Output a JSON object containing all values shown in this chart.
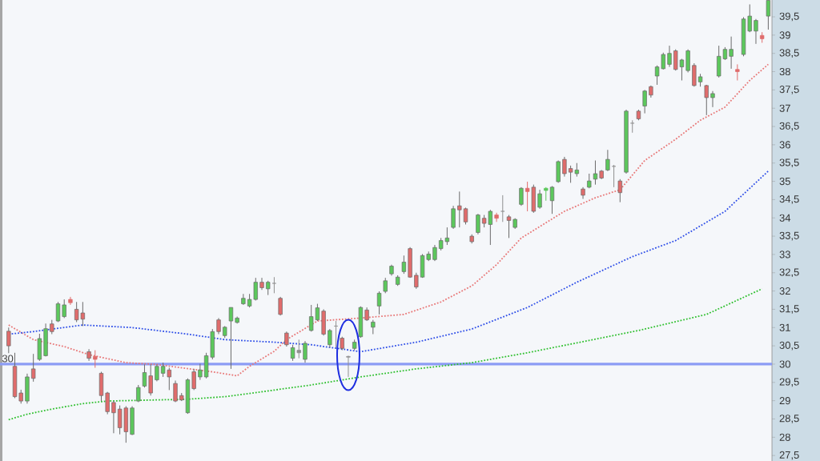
{
  "chart_data": {
    "type": "candlestick",
    "categories": [
      null,
      null,
      null,
      null,
      null,
      null,
      null,
      null,
      null,
      null,
      null,
      null,
      null,
      null,
      null,
      null,
      null,
      null,
      null,
      null,
      null,
      null,
      null,
      null,
      null,
      null,
      null,
      null,
      null,
      null,
      null,
      null,
      null,
      null,
      null,
      null,
      null,
      null,
      null,
      null,
      null,
      null,
      null,
      null,
      null,
      null,
      null,
      null,
      null,
      null,
      null,
      null,
      null,
      null,
      null,
      null,
      null,
      null,
      null,
      null,
      null,
      null,
      null,
      null,
      null,
      null,
      null,
      null,
      null,
      null,
      null,
      null,
      null,
      null,
      null,
      null,
      null,
      null,
      null,
      null,
      null,
      null,
      null,
      null,
      null,
      null,
      null,
      null,
      null,
      null,
      null,
      null,
      null,
      null,
      null,
      null,
      null,
      null,
      null,
      null,
      null,
      null,
      null,
      null,
      null,
      null,
      null,
      null,
      null,
      null,
      null,
      null,
      null,
      null,
      null,
      null,
      null,
      null,
      null,
      null,
      null,
      null,
      null,
      null
    ],
    "series": [
      {
        "type": "line",
        "color": "#e87878",
        "values": [
          31.07,
          null,
          null,
          null,
          30.67,
          null,
          null,
          null,
          null,
          30.48,
          null,
          null,
          null,
          30.26,
          null,
          null,
          null,
          null,
          null,
          30.04,
          null,
          null,
          null,
          null,
          29.99,
          null,
          null,
          null,
          null,
          null,
          null,
          null,
          null,
          29.79,
          null,
          null,
          null,
          29.68,
          null,
          29.94,
          null,
          null,
          null,
          30.35,
          null,
          30.67,
          null,
          null,
          null,
          null,
          31.18,
          null,
          null,
          null,
          null,
          null,
          null,
          31.26,
          null,
          null,
          null,
          null,
          null,
          null,
          31.36,
          null,
          null,
          null,
          null,
          null,
          31.7,
          null,
          null,
          null,
          null,
          32.14,
          null,
          null,
          null,
          32.72,
          null,
          null,
          null,
          33.45,
          null,
          null,
          null,
          null,
          null,
          null,
          34.18,
          null,
          null,
          null,
          null,
          34.55,
          null,
          null,
          null,
          34.77,
          null,
          null,
          null,
          35.57,
          null,
          null,
          null,
          null,
          36.15,
          null,
          null,
          null,
          36.67,
          null,
          null,
          null,
          37.03,
          null,
          null,
          null,
          37.76,
          null,
          null,
          38.2
        ]
      },
      {
        "type": "line",
        "color": "#3050e8",
        "values": [
          30.82,
          null,
          null,
          null,
          30.89,
          null,
          null,
          null,
          null,
          null,
          null,
          null,
          31.07,
          null,
          null,
          null,
          null,
          null,
          null,
          null,
          31.0,
          null,
          null,
          null,
          null,
          null,
          null,
          null,
          null,
          30.82,
          null,
          null,
          null,
          null,
          null,
          30.67,
          null,
          null,
          null,
          null,
          null,
          null,
          null,
          30.6,
          null,
          null,
          null,
          null,
          null,
          30.53,
          null,
          null,
          null,
          null,
          null,
          null,
          null,
          30.34,
          null,
          null,
          null,
          null,
          null,
          null,
          null,
          null,
          30.6,
          null,
          null,
          null,
          null,
          null,
          null,
          null,
          null,
          30.96,
          null,
          null,
          null,
          null,
          null,
          null,
          null,
          null,
          31.55,
          null,
          null,
          null,
          null,
          null,
          null,
          null,
          32.24,
          null,
          null,
          null,
          null,
          null,
          null,
          null,
          null,
          32.94,
          null,
          null,
          null,
          null,
          null,
          null,
          33.38,
          null,
          null,
          null,
          null,
          null,
          null,
          null,
          34.18,
          null,
          null,
          null,
          null,
          null,
          null,
          35.28
        ]
      },
      {
        "type": "line",
        "color": "#30c030",
        "values": [
          28.48,
          null,
          null,
          28.63,
          null,
          null,
          null,
          28.77,
          null,
          null,
          null,
          null,
          28.92,
          null,
          null,
          null,
          28.99,
          null,
          null,
          null,
          null,
          null,
          null,
          null,
          null,
          null,
          null,
          null,
          null,
          29.04,
          null,
          null,
          null,
          null,
          null,
          29.11,
          null,
          null,
          null,
          null,
          null,
          null,
          null,
          29.29,
          null,
          null,
          null,
          null,
          null,
          29.43,
          null,
          null,
          null,
          null,
          null,
          null,
          null,
          29.65,
          null,
          null,
          null,
          null,
          null,
          null,
          null,
          null,
          29.87,
          null,
          null,
          null,
          null,
          null,
          null,
          null,
          null,
          30.04,
          null,
          null,
          null,
          null,
          null,
          null,
          null,
          null,
          30.31,
          null,
          null,
          null,
          null,
          null,
          null,
          null,
          null,
          null,
          null,
          null,
          null,
          null,
          null,
          null,
          null,
          null,
          30.92,
          null,
          null,
          null,
          null,
          null,
          null,
          null,
          null,
          null,
          null,
          31.36,
          null,
          null,
          null,
          null,
          null,
          null,
          null,
          null,
          32.06,
          null
        ]
      },
      {
        "ohlc": [
          [
            30.9,
            31.0,
            30.3,
            30.5
          ],
          [
            29.94,
            30.31,
            29.07,
            29.11
          ],
          [
            29.21,
            29.3,
            28.92,
            28.99
          ],
          [
            28.99,
            29.74,
            28.92,
            29.65
          ],
          [
            29.87,
            30.28,
            29.52,
            29.61
          ],
          [
            30.13,
            30.83,
            30.09,
            30.7
          ],
          [
            30.23,
            31.11,
            30.21,
            30.97
          ],
          [
            31.1,
            31.21,
            30.82,
            30.89
          ],
          [
            31.18,
            31.7,
            31.15,
            31.65
          ],
          [
            31.3,
            31.77,
            31.26,
            31.62
          ],
          [
            31.77,
            31.84,
            31.62,
            31.68
          ],
          [
            31.5,
            31.7,
            31.15,
            31.21
          ],
          [
            31.4,
            31.7,
            31.04,
            31.23
          ],
          [
            30.34,
            30.41,
            30.09,
            30.16
          ],
          [
            30.21,
            30.38,
            29.9,
            30.13
          ],
          [
            29.75,
            29.79,
            28.99,
            29.14
          ],
          [
            29.21,
            29.24,
            28.63,
            28.7
          ],
          [
            28.95,
            28.99,
            28.11,
            28.67
          ],
          [
            28.77,
            28.87,
            28.08,
            28.26
          ],
          [
            28.8,
            28.85,
            27.85,
            28.15
          ],
          [
            28.08,
            28.85,
            28.06,
            28.8
          ],
          [
            28.99,
            29.43,
            28.96,
            29.36
          ],
          [
            29.4,
            29.99,
            29.36,
            29.77
          ],
          [
            29.68,
            29.99,
            29.14,
            29.21
          ],
          [
            29.57,
            29.99,
            29.53,
            29.94
          ],
          [
            29.75,
            30.04,
            29.65,
            29.94
          ],
          [
            29.84,
            29.9,
            29.29,
            29.65
          ],
          [
            29.47,
            29.55,
            28.96,
            28.99
          ],
          [
            29.14,
            29.21,
            28.99,
            29.02
          ],
          [
            28.67,
            29.61,
            28.64,
            29.57
          ],
          [
            29.79,
            29.87,
            29.29,
            29.33
          ],
          [
            29.65,
            30.01,
            29.57,
            29.84
          ],
          [
            29.65,
            30.31,
            29.61,
            30.23
          ],
          [
            30.19,
            30.96,
            30.13,
            30.89
          ],
          [
            31.21,
            31.26,
            30.82,
            30.89
          ],
          [
            30.78,
            31.04,
            30.72,
            31.01
          ],
          [
            31.18,
            31.55,
            29.87,
            31.55
          ],
          [
            31.14,
            31.3,
            31.11,
            31.26
          ],
          [
            31.65,
            31.92,
            31.62,
            31.8
          ],
          [
            31.59,
            31.92,
            31.55,
            31.77
          ],
          [
            31.77,
            32.36,
            31.74,
            32.24
          ],
          [
            32.24,
            32.36,
            32.03,
            32.09
          ],
          [
            32.06,
            32.28,
            31.89,
            32.24
          ],
          [
            32.21,
            32.38,
            31.94,
            32.21
          ],
          [
            31.8,
            31.84,
            31.33,
            31.36
          ],
          [
            30.85,
            30.89,
            30.48,
            30.53
          ],
          [
            30.16,
            30.53,
            30.09,
            30.45
          ],
          [
            30.31,
            30.67,
            30.16,
            30.38
          ],
          [
            30.13,
            30.63,
            30.04,
            30.57
          ],
          [
            30.92,
            31.62,
            30.89,
            31.3
          ],
          [
            31.21,
            31.65,
            31.18,
            31.54
          ],
          [
            31.45,
            31.5,
            30.78,
            30.82
          ],
          [
            30.53,
            30.96,
            30.45,
            30.92
          ],
          [
            31.04,
            31.18,
            30.45,
            31.04
          ],
          [
            30.71,
            30.75,
            30.38,
            30.43
          ],
          [
            30.21,
            30.23,
            29.65,
            30.19
          ],
          [
            30.43,
            30.67,
            30.38,
            30.6
          ],
          [
            30.75,
            31.58,
            30.72,
            31.55
          ],
          [
            31.48,
            31.55,
            31.18,
            31.21
          ],
          [
            31.01,
            31.21,
            30.82,
            31.15
          ],
          [
            31.59,
            31.99,
            31.36,
            31.94
          ],
          [
            31.99,
            32.36,
            31.94,
            32.28
          ],
          [
            32.47,
            32.72,
            32.42,
            32.68
          ],
          [
            32.18,
            32.43,
            32.14,
            32.38
          ],
          [
            32.53,
            32.97,
            32.47,
            32.79
          ],
          [
            33.16,
            33.2,
            32.36,
            32.38
          ],
          [
            32.43,
            32.5,
            32.06,
            32.11
          ],
          [
            32.38,
            33.01,
            32.36,
            32.97
          ],
          [
            32.86,
            33.08,
            32.82,
            33.01
          ],
          [
            32.86,
            33.26,
            32.82,
            33.19
          ],
          [
            33.16,
            33.45,
            33.11,
            33.38
          ],
          [
            33.35,
            33.74,
            33.26,
            33.45
          ],
          [
            33.74,
            34.33,
            33.7,
            34.25
          ],
          [
            34.33,
            34.72,
            33.74,
            34.22
          ],
          [
            34.25,
            34.28,
            33.82,
            33.89
          ],
          [
            33.5,
            33.55,
            33.3,
            33.35
          ],
          [
            33.6,
            34.11,
            33.55,
            34.08
          ],
          [
            33.99,
            34.08,
            33.74,
            33.85
          ],
          [
            33.82,
            34.22,
            33.26,
            34.18
          ],
          [
            34.08,
            34.14,
            33.89,
            33.99
          ],
          [
            34.18,
            34.62,
            33.89,
            34.18
          ],
          [
            34.03,
            34.08,
            33.45,
            33.93
          ],
          [
            33.74,
            33.99,
            33.7,
            33.96
          ],
          [
            34.37,
            34.84,
            34.33,
            34.81
          ],
          [
            34.81,
            34.99,
            34.18,
            34.72
          ],
          [
            34.84,
            34.91,
            34.14,
            34.18
          ],
          [
            34.29,
            34.77,
            34.25,
            34.66
          ],
          [
            34.75,
            34.84,
            34.47,
            34.81
          ],
          [
            34.47,
            34.87,
            34.11,
            34.84
          ],
          [
            34.99,
            35.57,
            34.96,
            35.54
          ],
          [
            35.6,
            35.67,
            35.13,
            35.21
          ],
          [
            35.35,
            35.43,
            34.96,
            35.25
          ],
          [
            35.21,
            35.5,
            35.13,
            35.31
          ],
          [
            34.79,
            34.84,
            34.52,
            34.62
          ],
          [
            34.84,
            35.21,
            34.81,
            35.01
          ],
          [
            35.06,
            35.57,
            34.91,
            35.21
          ],
          [
            35.28,
            35.31,
            35.06,
            35.09
          ],
          [
            35.31,
            35.86,
            35.28,
            35.6
          ],
          [
            35.41,
            35.45,
            34.84,
            35.41
          ],
          [
            35.01,
            35.06,
            34.43,
            34.69
          ],
          [
            35.25,
            36.96,
            35.21,
            36.92
          ],
          [
            36.59,
            36.67,
            36.33,
            36.59
          ],
          [
            36.92,
            36.96,
            36.67,
            36.71
          ],
          [
            37.06,
            37.5,
            36.86,
            37.47
          ],
          [
            37.59,
            37.62,
            37.29,
            37.36
          ],
          [
            37.88,
            38.17,
            37.64,
            38.13
          ],
          [
            38.08,
            38.52,
            38.06,
            38.47
          ],
          [
            38.2,
            38.71,
            38.13,
            38.5
          ],
          [
            38.57,
            38.61,
            38.03,
            38.06
          ],
          [
            38.13,
            38.35,
            37.76,
            38.32
          ],
          [
            38.03,
            38.61,
            37.98,
            38.57
          ],
          [
            38.17,
            38.23,
            37.59,
            37.62
          ],
          [
            37.72,
            37.94,
            37.59,
            37.86
          ],
          [
            37.62,
            37.64,
            36.81,
            37.29
          ],
          [
            37.29,
            37.47,
            37.03,
            37.4
          ],
          [
            37.88,
            38.71,
            37.84,
            38.42
          ],
          [
            38.35,
            38.67,
            38.32,
            38.61
          ],
          [
            38.42,
            38.96,
            38.08,
            38.61
          ],
          [
            38.06,
            38.2,
            37.76,
            38.0
          ],
          [
            38.47,
            39.49,
            38.42,
            39.44
          ],
          [
            39.11,
            39.84,
            39.08,
            39.52
          ],
          [
            39.11,
            39.44,
            38.76,
            39.4
          ],
          [
            38.99,
            39.08,
            38.79,
            38.9
          ],
          [
            39.52,
            39.95,
            39.15,
            39.95
          ]
        ],
        "colors": [
          "#e06c6c",
          "#e06c6c",
          "#e06c6c",
          "#5cc85c",
          "#e06c6c",
          "#5cc85c",
          "#5cc85c",
          "#e06c6c",
          "#5cc85c",
          "#5cc85c",
          "#e06c6c",
          "#e06c6c",
          "#e06c6c",
          "#e06c6c",
          "#e06c6c",
          "#e06c6c",
          "#e06c6c",
          "#e06c6c",
          "#e06c6c",
          "#e06c6c",
          "#5cc85c",
          "#5cc85c",
          "#5cc85c",
          "#e06c6c",
          "#5cc85c",
          "#5cc85c",
          "#e06c6c",
          "#e06c6c",
          "#e06c6c",
          "#5cc85c",
          "#e06c6c",
          "#5cc85c",
          "#5cc85c",
          "#5cc85c",
          "#e06c6c",
          "#5cc85c",
          "#5cc85c",
          "#5cc85c",
          "#5cc85c",
          "#5cc85c",
          "#5cc85c",
          "#e06c6c",
          "#5cc85c",
          "#909090",
          "#e06c6c",
          "#e06c6c",
          "#5cc85c",
          "#909090",
          "#5cc85c",
          "#5cc85c",
          "#5cc85c",
          "#e06c6c",
          "#5cc85c",
          "#909090",
          "#e06c6c",
          "#909090",
          "#5cc85c",
          "#5cc85c",
          "#e06c6c",
          "#5cc85c",
          "#5cc85c",
          "#5cc85c",
          "#5cc85c",
          "#5cc85c",
          "#5cc85c",
          "#e06c6c",
          "#e06c6c",
          "#5cc85c",
          "#5cc85c",
          "#5cc85c",
          "#5cc85c",
          "#5cc85c",
          "#5cc85c",
          "#e06c6c",
          "#e06c6c",
          "#e06c6c",
          "#5cc85c",
          "#e06c6c",
          "#5cc85c",
          "#e06c6c",
          "#909090",
          "#e06c6c",
          "#5cc85c",
          "#5cc85c",
          "#e06c6c",
          "#e06c6c",
          "#5cc85c",
          "#5cc85c",
          "#5cc85c",
          "#5cc85c",
          "#e06c6c",
          "#e06c6c",
          "#5cc85c",
          "#e06c6c",
          "#5cc85c",
          "#5cc85c",
          "#e06c6c",
          "#5cc85c",
          "#909090",
          "#e06c6c",
          "#5cc85c",
          "#909090",
          "#e06c6c",
          "#5cc85c",
          "#e06c6c",
          "#5cc85c",
          "#5cc85c",
          "#5cc85c",
          "#e06c6c",
          "#5cc85c",
          "#5cc85c",
          "#e06c6c",
          "#5cc85c",
          "#e06c6c",
          "#5cc85c",
          "#5cc85c",
          "#5cc85c",
          "#5cc85c",
          "#e06c6c",
          "#5cc85c",
          "#5cc85c",
          "#5cc85c",
          "#e06c6c",
          "#5cc85c"
        ]
      }
    ],
    "line_style": "dotted",
    "ylim": [
      27.35,
      39.96
    ],
    "yticks": [
      {
        "value": 27.5,
        "label": "27,5"
      },
      28,
      {
        "value": 28.5,
        "label": "28,5"
      },
      29,
      {
        "value": 29.5,
        "label": "29,5"
      },
      30,
      {
        "value": 30.5,
        "label": "30,5"
      },
      31,
      {
        "value": 31.5,
        "label": "31,5"
      },
      32,
      {
        "value": 32.5,
        "label": "32,5"
      },
      33,
      {
        "value": 33.5,
        "label": "33,5"
      },
      34,
      {
        "value": 34.5,
        "label": "34,5"
      },
      35,
      {
        "value": 35.5,
        "label": "35,5"
      },
      36,
      {
        "value": 36.5,
        "label": "36,5"
      },
      37,
      {
        "value": 37.5,
        "label": "37,5"
      },
      38,
      {
        "value": 38.5,
        "label": "38,5"
      },
      39,
      {
        "value": 39.5,
        "label": "39,5"
      }
    ],
    "tick_labels": "y",
    "ref_lines": [
      {
        "axis": "y",
        "value": 30,
        "label": "30",
        "color": "#8c9cf5"
      }
    ]
  }
}
